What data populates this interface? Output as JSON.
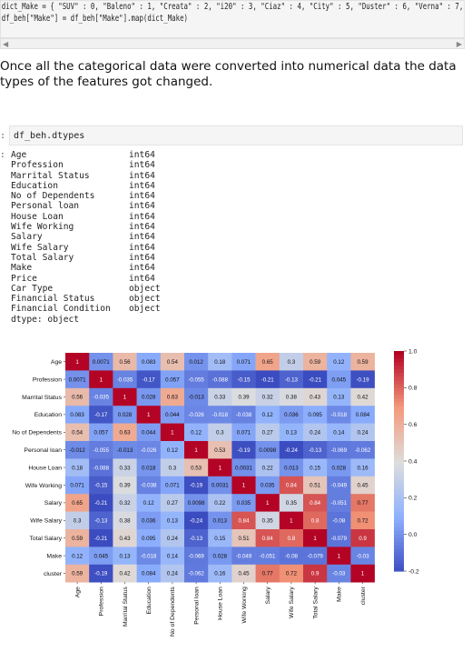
{
  "code_cell": {
    "lines": [
      "dict_Make = { \"SUV\" : 0, \"Baleno\" : 1, \"Creata\" : 2, \"i20\" : 3, \"Ciaz\" : 4, \"City\" : 5, \"Duster\" : 6, \"Verna\" : 7, \"Luxuray\" : 8}",
      "df_beh[\"Make\"] = df_beh[\"Make\"].map(dict_Make)"
    ]
  },
  "scrollbar": {
    "left_arrow": "◀",
    "right_arrow": "▶"
  },
  "prose": {
    "text": "Once all the categorical data were converted into numerical data the data types of the features got changed."
  },
  "cell2": {
    "prompt": ":",
    "code": "df_beh.dtypes"
  },
  "dtypes_output": {
    "prompt": ":",
    "rows": [
      {
        "name": "Age",
        "type": "int64"
      },
      {
        "name": "Profession",
        "type": "int64"
      },
      {
        "name": "Marrital Status",
        "type": "int64"
      },
      {
        "name": "Education",
        "type": "int64"
      },
      {
        "name": "No of Dependents",
        "type": "int64"
      },
      {
        "name": "Personal loan",
        "type": "int64"
      },
      {
        "name": "House Loan",
        "type": "int64"
      },
      {
        "name": "Wife Working",
        "type": "int64"
      },
      {
        "name": "Salary",
        "type": "int64"
      },
      {
        "name": "Wife Salary",
        "type": "int64"
      },
      {
        "name": "Total Salary",
        "type": "int64"
      },
      {
        "name": "Make",
        "type": "int64"
      },
      {
        "name": "Price",
        "type": "int64"
      },
      {
        "name": "Car Type",
        "type": "object"
      },
      {
        "name": "Financial Status",
        "type": "object"
      },
      {
        "name": "Financial Condition",
        "type": "object"
      }
    ],
    "footer": "dtype: object"
  },
  "chart_data": {
    "type": "heatmap",
    "labels": [
      "Age",
      "Profession",
      "Marrital Status",
      "Education",
      "No of Dependents",
      "Personal loan",
      "House Loan",
      "Wife Working",
      "Salary",
      "Wife Salary",
      "Total Salary",
      "Make",
      "cluster"
    ],
    "y_labels": [
      "Age",
      "Profession",
      "Marrital Status",
      "Education",
      "No of Dependents",
      "Personal loan",
      "House Loan",
      "Wife Working",
      "Salary",
      "Wife Salary",
      "Total Salary",
      "Make",
      "cluster"
    ],
    "x_labels": [
      "Age",
      "Profession",
      "Marrital Status",
      "Education",
      "No of Dependents",
      "Personal loan",
      "House Loan",
      "Wife Working",
      "Salary",
      "Wife Salary",
      "Total Salary",
      "Make",
      "cluster"
    ],
    "values": [
      [
        1,
        0.0071,
        0.56,
        0.083,
        0.54,
        0.012,
        0.18,
        0.071,
        0.65,
        0.3,
        0.59,
        0.12,
        0.59
      ],
      [
        0.0071,
        1,
        -0.035,
        -0.17,
        0.057,
        -0.055,
        -0.088,
        -0.15,
        -0.21,
        -0.13,
        -0.21,
        0.045,
        -0.19
      ],
      [
        0.56,
        -0.035,
        1,
        0.028,
        0.63,
        -0.013,
        0.33,
        0.39,
        0.32,
        0.38,
        0.43,
        0.13,
        0.42
      ],
      [
        0.083,
        -0.17,
        0.028,
        1,
        0.044,
        -0.026,
        -0.018,
        -0.038,
        0.12,
        0.036,
        0.095,
        -0.018,
        0.084
      ],
      [
        0.54,
        0.057,
        0.63,
        0.044,
        1,
        0.12,
        0.3,
        0.071,
        0.27,
        0.13,
        0.24,
        0.14,
        0.24
      ],
      [
        -0.012,
        -0.055,
        -0.013,
        -0.026,
        0.12,
        1,
        0.53,
        -0.19,
        0.0098,
        -0.24,
        -0.13,
        -0.069,
        -0.062
      ],
      [
        0.18,
        -0.088,
        0.33,
        0.018,
        0.3,
        0.53,
        1,
        0.0031,
        0.22,
        0.013,
        0.15,
        0.028,
        0.16
      ],
      [
        0.071,
        -0.15,
        0.39,
        -0.038,
        0.071,
        -0.19,
        0.0031,
        1,
        0.035,
        0.84,
        0.51,
        -0.049,
        0.45
      ],
      [
        0.65,
        -0.21,
        0.32,
        0.12,
        0.27,
        0.0098,
        0.22,
        0.035,
        1,
        0.35,
        0.84,
        -0.051,
        0.77
      ],
      [
        0.3,
        -0.13,
        0.38,
        0.036,
        0.13,
        -0.24,
        0.013,
        0.84,
        0.35,
        1,
        0.8,
        -0.08,
        0.72
      ],
      [
        0.59,
        -0.21,
        0.43,
        0.095,
        0.24,
        -0.13,
        0.15,
        0.51,
        0.84,
        0.8,
        1,
        -0.079,
        0.9
      ],
      [
        0.12,
        0.045,
        0.13,
        -0.018,
        0.14,
        -0.069,
        0.028,
        -0.049,
        -0.051,
        -0.08,
        -0.079,
        1,
        -0.03
      ],
      [
        0.59,
        -0.19,
        0.42,
        0.084,
        0.24,
        -0.062,
        0.16,
        0.45,
        0.77,
        0.72,
        0.9,
        -0.03,
        1
      ]
    ],
    "display_values": [
      [
        "1",
        "0.0071",
        "0.56",
        "0.083",
        "0.54",
        "0.012",
        "0.18",
        "0.071",
        "0.65",
        "0.3",
        "0.59",
        "0.12",
        "0.59"
      ],
      [
        "0.0071",
        "1",
        "-0.035",
        "-0.17",
        "0.057",
        "-0.055",
        "-0.088",
        "-0.15",
        "-0.21",
        "-0.13",
        "-0.21",
        "0.045",
        "-0.19"
      ],
      [
        "0.56",
        "-0.035",
        "1",
        "0.028",
        "0.63",
        "-0.013",
        "0.33",
        "0.39",
        "0.32",
        "0.38",
        "0.43",
        "0.13",
        "0.42"
      ],
      [
        "0.083",
        "-0.17",
        "0.028",
        "1",
        "0.044",
        "-0.026",
        "-0.018",
        "-0.038",
        "0.12",
        "0.036",
        "0.095",
        "-0.018",
        "0.084"
      ],
      [
        "0.54",
        "0.057",
        "0.63",
        "0.044",
        "1",
        "0.12",
        "0.3",
        "0.071",
        "0.27",
        "0.13",
        "0.24",
        "0.14",
        "0.24"
      ],
      [
        "-0.012",
        "-0.055",
        "-0.013",
        "-0.026",
        "0.12",
        "1",
        "0.53",
        "-0.19",
        "0.0098",
        "-0.24",
        "-0.13",
        "-0.069",
        "-0.062"
      ],
      [
        "0.18",
        "-0.088",
        "0.33",
        "0.018",
        "0.3",
        "0.53",
        "1",
        "0.0031",
        "0.22",
        "0.013",
        "0.15",
        "0.028",
        "0.16"
      ],
      [
        "0.071",
        "-0.15",
        "0.39",
        "-0.038",
        "0.071",
        "-0.19",
        "0.0031",
        "1",
        "0.035",
        "0.84",
        "0.51",
        "-0.049",
        "0.45"
      ],
      [
        "0.65",
        "-0.21",
        "0.32",
        "0.12",
        "0.27",
        "0.0098",
        "0.22",
        "0.035",
        "1",
        "0.35",
        "0.84",
        "-0.051",
        "0.77"
      ],
      [
        "0.3",
        "-0.13",
        "0.38",
        "0.036",
        "0.13",
        "-0.24",
        "0.013",
        "0.84",
        "0.35",
        "1",
        "0.8",
        "-0.08",
        "0.72"
      ],
      [
        "0.59",
        "-0.21",
        "0.43",
        "0.095",
        "0.24",
        "-0.13",
        "0.15",
        "0.51",
        "0.84",
        "0.8",
        "1",
        "-0.079",
        "0.9"
      ],
      [
        "0.12",
        "0.045",
        "0.13",
        "-0.018",
        "0.14",
        "-0.069",
        "0.028",
        "-0.049",
        "-0.051",
        "-0.08",
        "-0.079",
        "1",
        "-0.03"
      ],
      [
        "0.59",
        "-0.19",
        "0.42",
        "0.084",
        "0.24",
        "-0.062",
        "0.16",
        "0.45",
        "0.77",
        "0.72",
        "0.9",
        "-0.03",
        "1"
      ]
    ],
    "y_display_labels": [
      "Age",
      "Profession",
      "Marrital Status",
      "Education",
      "No of Dependents",
      "Personal loan",
      "House Loan",
      "Wife Working",
      "Salary",
      "Wife Salary",
      "Total Salary",
      "Make",
      "cluster"
    ],
    "colormap": "coolwarm",
    "vmin": -0.2,
    "vmax": 1.0,
    "colorbar_ticks": [
      "1.0",
      "0.8",
      "0.6",
      "0.4",
      "0.2",
      "0.0",
      "-0.2"
    ],
    "colorbar_tick_values": [
      1.0,
      0.8,
      0.6,
      0.4,
      0.2,
      0.0,
      -0.2
    ],
    "colors": {
      "low": "#3b4cc0",
      "mid": "#dddddd",
      "high": "#b40426"
    }
  }
}
